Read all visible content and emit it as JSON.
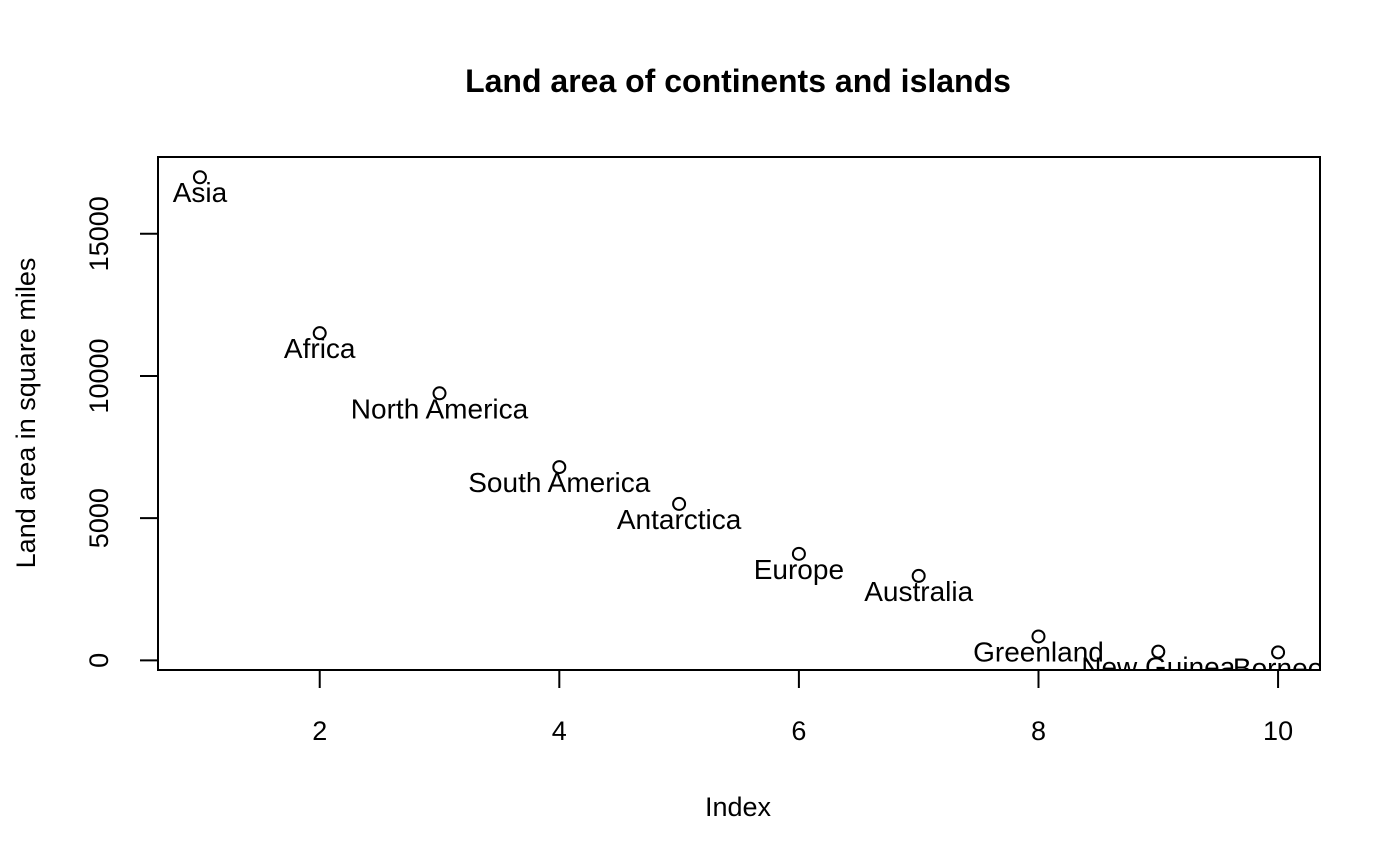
{
  "chart_data": {
    "type": "scatter",
    "title": "Land area of continents and islands",
    "xlabel": "Index",
    "ylabel": "Land area in square miles",
    "xlim": [
      0.65,
      10.35
    ],
    "ylim": [
      -340,
      17700
    ],
    "x_ticks": [
      2,
      4,
      6,
      8,
      10
    ],
    "x_tick_labels": [
      "2",
      "4",
      "6",
      "8",
      "10"
    ],
    "y_ticks": [
      0,
      5000,
      10000,
      15000
    ],
    "y_tick_labels": [
      "0",
      "5000",
      "10000",
      "15000"
    ],
    "grid": false,
    "legend": "none",
    "point_style": "open-circle",
    "x": [
      1,
      2,
      3,
      4,
      5,
      6,
      7,
      8,
      9,
      10
    ],
    "y": [
      16988,
      11506,
      9390,
      6795,
      5500,
      3745,
      2968,
      840,
      306,
      280
    ],
    "labels": [
      "Asia",
      "Africa",
      "North America",
      "South America",
      "Antarctica",
      "Europe",
      "Australia",
      "Greenland",
      "New Guinea",
      "Borneo"
    ]
  }
}
